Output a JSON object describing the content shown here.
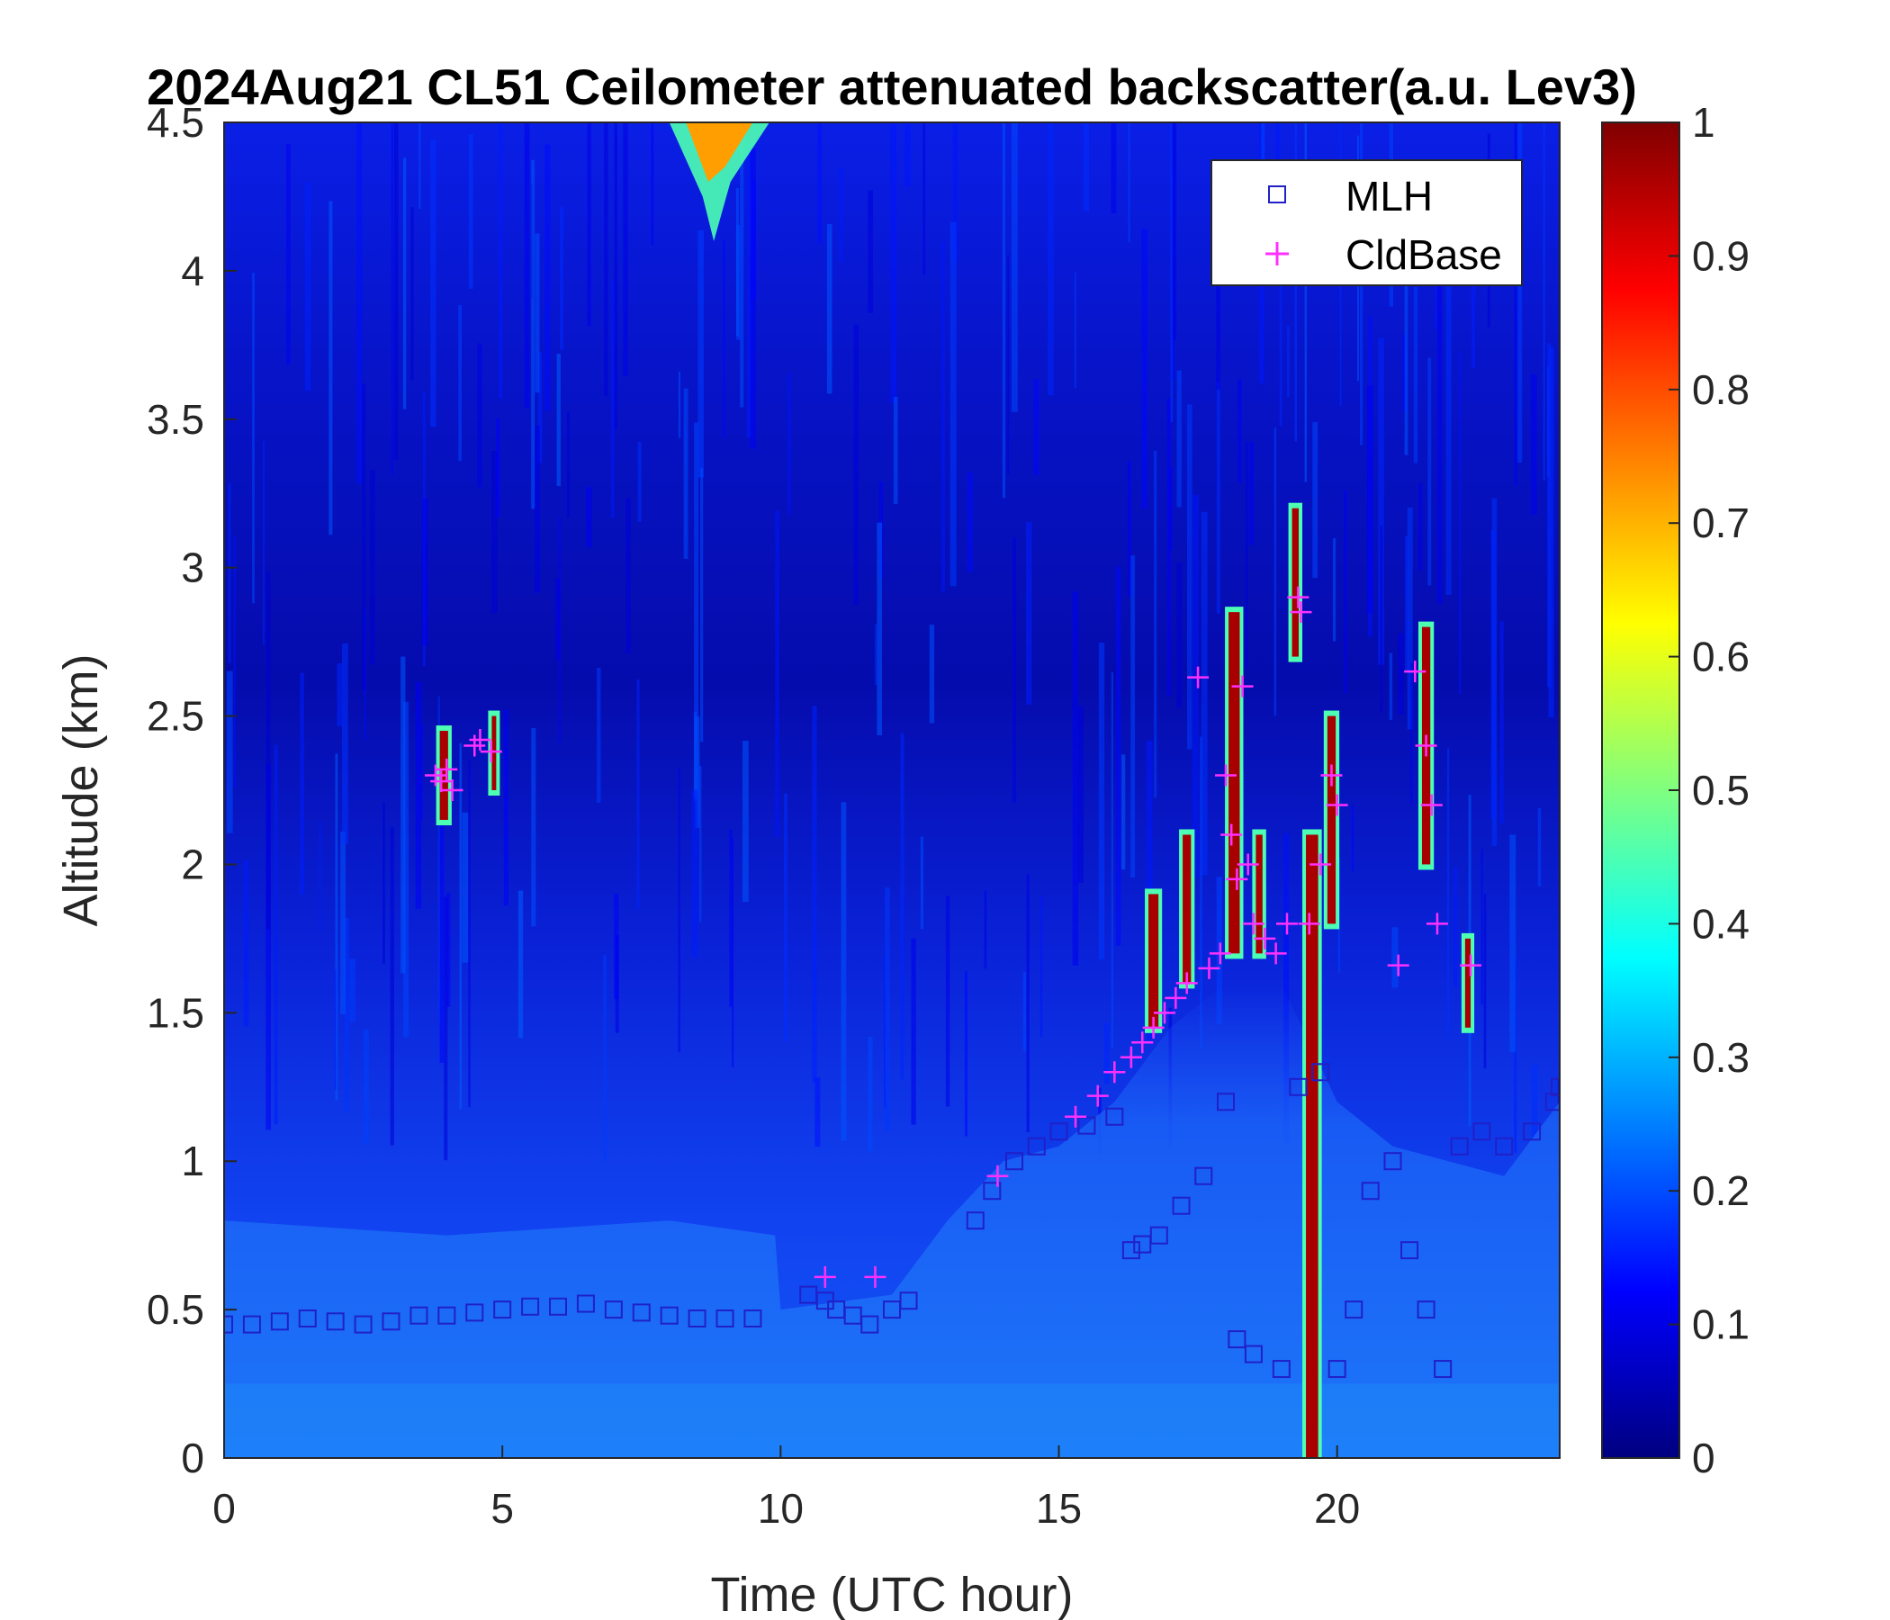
{
  "chart_data": {
    "type": "heatmap",
    "title": "2024Aug21 CL51 Ceilometer attenuated backscatter(a.u. Lev3)",
    "xlabel": "Time (UTC hour)",
    "ylabel": "Altitude (km)",
    "xlim": [
      0,
      24
    ],
    "ylim": [
      0,
      4.5
    ],
    "xticks": [
      0,
      5,
      10,
      15,
      20
    ],
    "yticks": [
      0,
      0.5,
      1,
      1.5,
      2,
      2.5,
      3,
      3.5,
      4,
      4.5
    ],
    "colorbar": {
      "range": [
        0,
        1
      ],
      "ticks": [
        0,
        0.1,
        0.2,
        0.3,
        0.4,
        0.5,
        0.6,
        0.7,
        0.8,
        0.9,
        1
      ],
      "colormap": "jet"
    },
    "legend": {
      "position": "top-right",
      "entries": [
        {
          "label": "MLH",
          "marker": "square",
          "color": "#2020c8"
        },
        {
          "label": "CldBase",
          "marker": "plus",
          "color": "#ff30ff"
        }
      ]
    },
    "series": [
      {
        "name": "MLH",
        "points": [
          [
            0.0,
            0.45
          ],
          [
            0.5,
            0.45
          ],
          [
            1.0,
            0.46
          ],
          [
            1.5,
            0.47
          ],
          [
            2.0,
            0.46
          ],
          [
            2.5,
            0.45
          ],
          [
            3.0,
            0.46
          ],
          [
            3.5,
            0.48
          ],
          [
            4.0,
            0.48
          ],
          [
            4.5,
            0.49
          ],
          [
            5.0,
            0.5
          ],
          [
            5.5,
            0.51
          ],
          [
            6.0,
            0.51
          ],
          [
            6.5,
            0.52
          ],
          [
            7.0,
            0.5
          ],
          [
            7.5,
            0.49
          ],
          [
            8.0,
            0.48
          ],
          [
            8.5,
            0.47
          ],
          [
            9.0,
            0.47
          ],
          [
            9.5,
            0.47
          ],
          [
            10.5,
            0.55
          ],
          [
            10.8,
            0.53
          ],
          [
            11.0,
            0.5
          ],
          [
            11.3,
            0.48
          ],
          [
            11.6,
            0.45
          ],
          [
            12.0,
            0.5
          ],
          [
            12.3,
            0.53
          ],
          [
            13.5,
            0.8
          ],
          [
            13.8,
            0.9
          ],
          [
            14.2,
            1.0
          ],
          [
            14.6,
            1.05
          ],
          [
            15.0,
            1.1
          ],
          [
            15.5,
            1.12
          ],
          [
            16.0,
            1.15
          ],
          [
            16.3,
            0.7
          ],
          [
            16.5,
            0.72
          ],
          [
            16.8,
            0.75
          ],
          [
            17.2,
            0.85
          ],
          [
            17.6,
            0.95
          ],
          [
            18.0,
            1.2
          ],
          [
            18.2,
            0.4
          ],
          [
            18.5,
            0.35
          ],
          [
            19.0,
            0.3
          ],
          [
            19.3,
            1.25
          ],
          [
            19.7,
            1.3
          ],
          [
            20.0,
            0.3
          ],
          [
            20.3,
            0.5
          ],
          [
            20.6,
            0.9
          ],
          [
            21.0,
            1.0
          ],
          [
            21.3,
            0.7
          ],
          [
            21.6,
            0.5
          ],
          [
            21.9,
            0.3
          ],
          [
            22.2,
            1.05
          ],
          [
            22.6,
            1.1
          ],
          [
            23.0,
            1.05
          ],
          [
            23.5,
            1.1
          ],
          [
            23.9,
            1.2
          ],
          [
            24.0,
            1.25
          ]
        ]
      },
      {
        "name": "CldBase",
        "points": [
          [
            3.8,
            2.3
          ],
          [
            3.9,
            2.28
          ],
          [
            4.0,
            2.32
          ],
          [
            4.1,
            2.25
          ],
          [
            4.5,
            2.4
          ],
          [
            4.6,
            2.42
          ],
          [
            4.8,
            2.38
          ],
          [
            10.8,
            0.61
          ],
          [
            11.7,
            0.61
          ],
          [
            13.9,
            0.95
          ],
          [
            15.3,
            1.15
          ],
          [
            15.7,
            1.22
          ],
          [
            16.0,
            1.3
          ],
          [
            16.3,
            1.35
          ],
          [
            16.5,
            1.4
          ],
          [
            16.7,
            1.45
          ],
          [
            16.9,
            1.5
          ],
          [
            17.1,
            1.55
          ],
          [
            17.3,
            1.6
          ],
          [
            17.5,
            2.63
          ],
          [
            17.7,
            1.65
          ],
          [
            17.9,
            1.7
          ],
          [
            18.0,
            2.3
          ],
          [
            18.1,
            2.1
          ],
          [
            18.2,
            1.95
          ],
          [
            18.3,
            2.6
          ],
          [
            18.4,
            2.0
          ],
          [
            18.5,
            1.8
          ],
          [
            18.7,
            1.75
          ],
          [
            18.9,
            1.7
          ],
          [
            19.1,
            1.8
          ],
          [
            19.3,
            2.9
          ],
          [
            19.35,
            2.85
          ],
          [
            19.5,
            1.8
          ],
          [
            19.7,
            2.0
          ],
          [
            19.9,
            2.3
          ],
          [
            20.0,
            2.2
          ],
          [
            21.1,
            1.66
          ],
          [
            21.4,
            2.65
          ],
          [
            21.6,
            2.4
          ],
          [
            21.7,
            2.2
          ],
          [
            21.8,
            1.8
          ],
          [
            22.4,
            1.66
          ]
        ]
      }
    ]
  }
}
